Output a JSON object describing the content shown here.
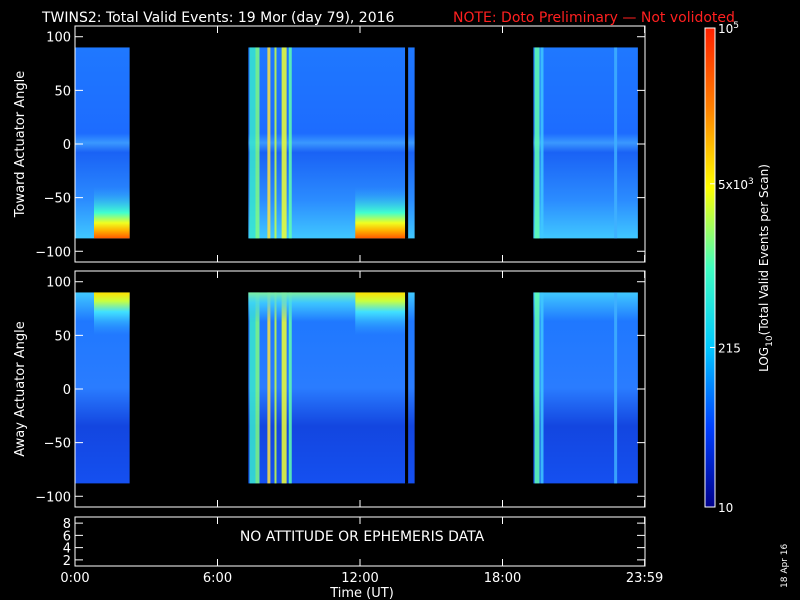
{
  "header": {
    "title": "TWINS2: Total Valid Events: 19 Mor (day  79), 2016",
    "note": "NOTE: Doto Preliminary — Not volidoted"
  },
  "stamp": "18 Apr 16",
  "colorbar": {
    "label_prefix": "LOG",
    "label_sub": "10",
    "label_suffix": "(Total Valid Events per Scan)",
    "ticks": [
      {
        "value": 100000,
        "base": "10",
        "exp": "5"
      },
      {
        "value": 5000,
        "base": "5x10",
        "exp": "3"
      },
      {
        "value": 215,
        "base": "215",
        "exp": ""
      },
      {
        "value": 10,
        "base": "10",
        "exp": ""
      }
    ],
    "range": [
      10,
      100000
    ],
    "scale": "log",
    "colors": [
      "#00008b",
      "#0040ff",
      "#00c8ff",
      "#40ffc0",
      "#ffff00",
      "#ff8000",
      "#ff2000"
    ]
  },
  "chart_data": [
    {
      "type": "heatmap",
      "ylabel": "Toward Actuator Angle",
      "ylim": [
        -110,
        110
      ],
      "yticks": [
        -100,
        -50,
        0,
        50,
        100
      ],
      "xlim": [
        0,
        24
      ],
      "coverage_hours": [
        [
          0.0,
          2.3
        ],
        [
          7.3,
          13.9
        ],
        [
          13.95,
          14.3
        ],
        [
          19.3,
          23.7
        ]
      ],
      "data_gaps_hours": [
        [
          2.3,
          7.3
        ],
        [
          14.3,
          19.3
        ]
      ],
      "angle_range": [
        -88,
        90
      ],
      "intense_region": {
        "time_hours": [
          [
            0.8,
            2.3
          ],
          [
            11.8,
            13.9
          ]
        ],
        "angle_deg": [
          -88,
          -40
        ]
      }
    },
    {
      "type": "heatmap",
      "ylabel": "Away Actuator Angle",
      "ylim": [
        -110,
        110
      ],
      "yticks": [
        -100,
        -50,
        0,
        50,
        100
      ],
      "xlim": [
        0,
        24
      ],
      "coverage_hours": [
        [
          0.0,
          2.3
        ],
        [
          7.3,
          13.9
        ],
        [
          13.95,
          14.3
        ],
        [
          19.3,
          23.7
        ]
      ],
      "data_gaps_hours": [
        [
          2.3,
          7.3
        ],
        [
          14.3,
          19.3
        ]
      ],
      "angle_range": [
        -88,
        90
      ],
      "intense_region": {
        "time_hours": [
          [
            0.8,
            2.3
          ],
          [
            11.8,
            13.9
          ]
        ],
        "angle_deg": [
          50,
          90
        ]
      }
    },
    {
      "type": "table",
      "yticks": [
        2,
        4,
        6,
        8
      ],
      "ylim": [
        1,
        9
      ],
      "message": "NO ATTITUDE OR EPHEMERIS DATA"
    }
  ],
  "xaxis": {
    "label": "Time (UT)",
    "ticks": [
      {
        "hour": 0,
        "label": "0:00"
      },
      {
        "hour": 6,
        "label": "6:00"
      },
      {
        "hour": 12,
        "label": "12:00"
      },
      {
        "hour": 18,
        "label": "18:00"
      },
      {
        "hour": 23.983,
        "label": "23:59"
      }
    ]
  }
}
